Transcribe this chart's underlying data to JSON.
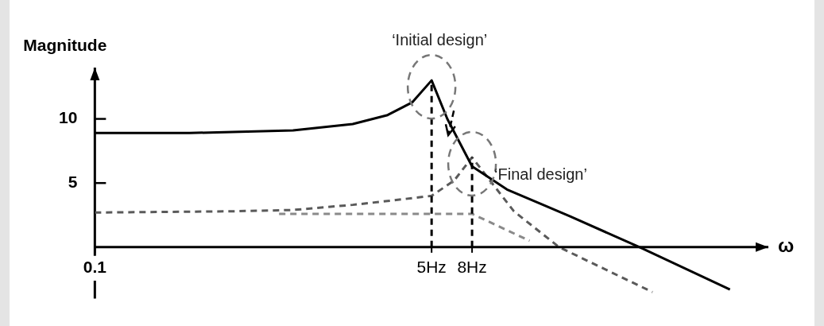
{
  "chart_data": {
    "type": "line",
    "ylabel": "Magnitude",
    "xlabel": "ω",
    "log": "x",
    "xlim": [
      0.1,
      250
    ],
    "xticks": [
      {
        "value": 0.1,
        "label": "0.1"
      },
      {
        "value": 5,
        "label": "5Hz"
      },
      {
        "value": 8,
        "label": "8Hz"
      }
    ],
    "ylim": [
      -4,
      14
    ],
    "yticks": [
      {
        "value": 5,
        "label": "5"
      },
      {
        "value": 10,
        "label": "10"
      }
    ],
    "grid": false,
    "legend": false,
    "marker": "none",
    "series": [
      {
        "color": "#000000",
        "line_style": "solid",
        "x": [
          0.1,
          0.3,
          1,
          2,
          3,
          4,
          5,
          6,
          8,
          12,
          25,
          56,
          160
        ],
        "values": [
          8.9,
          8.9,
          9.1,
          9.6,
          10.3,
          11.3,
          13,
          10,
          6.3,
          4.5,
          2.4,
          0,
          -3.3
        ]
      },
      {
        "color": "#5a5a5a",
        "line_style": "dashed",
        "x": [
          0.1,
          0.5,
          1,
          2,
          3,
          5,
          6.5,
          8,
          13,
          22,
          65
        ],
        "values": [
          2.7,
          2.8,
          2.9,
          3.3,
          3.6,
          4,
          5.2,
          7,
          2.8,
          0,
          -3.5
        ]
      },
      {
        "color": "#8a8a8a",
        "line_style": "dashed",
        "x": [
          0.85,
          8,
          15.6
        ],
        "values": [
          2.6,
          2.6,
          0.5
        ]
      }
    ],
    "ref_lines": [
      {
        "axis": "x",
        "value": 5,
        "color": "#000000",
        "line_style": "dashed"
      },
      {
        "axis": "x",
        "value": 8,
        "color": "#000000",
        "line_style": "dashed"
      }
    ],
    "annotations": [
      {
        "text": "‘Initial design’",
        "x": 5,
        "y": 13
      },
      {
        "text": "‘Final design’",
        "x": 8,
        "y": 7
      }
    ]
  }
}
